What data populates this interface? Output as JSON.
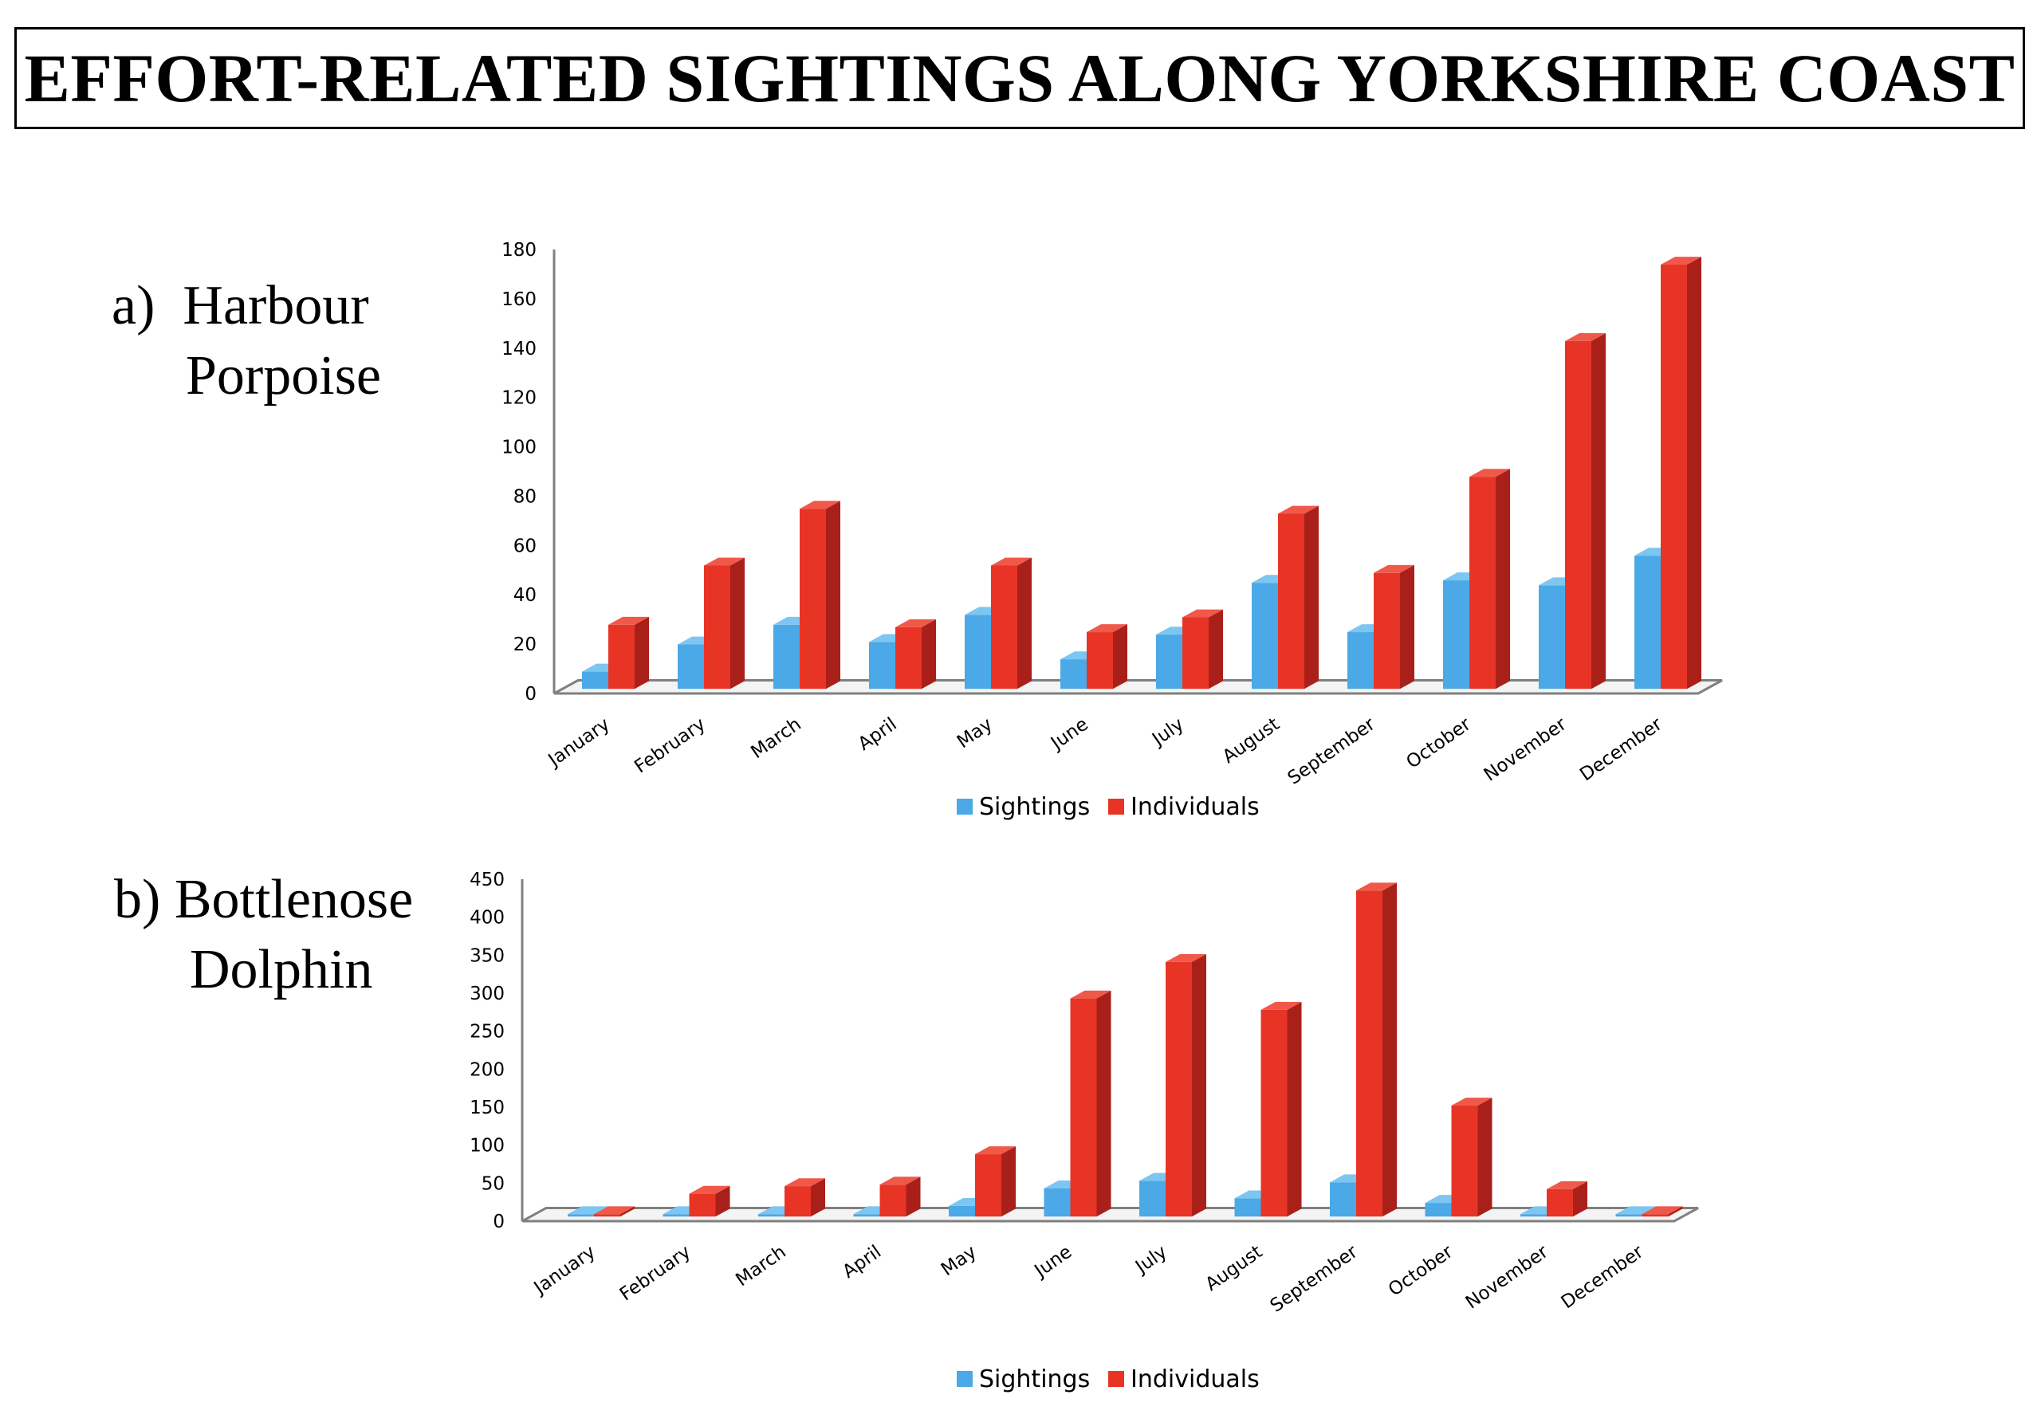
{
  "page_title": "EFFORT-RELATED SIGHTINGS ALONG YORKSHIRE COAST",
  "panels": {
    "a": {
      "prefix": "a)",
      "line1": "Harbour",
      "line2": "Porpoise"
    },
    "b": {
      "prefix": "b)",
      "line1": "Bottlenose",
      "line2": "Dolphin"
    }
  },
  "colors": {
    "sightings": "#4aa9e6",
    "sightings_side": "#2f86c2",
    "sightings_top": "#7cc6f2",
    "individuals": "#e83425",
    "individuals_side": "#a9201a",
    "individuals_top": "#f0584a",
    "axis": "#808080"
  },
  "chart_data": [
    {
      "type": "bar",
      "id": "harbour-porpoise",
      "title": "Harbour Porpoise",
      "categories": [
        "January",
        "February",
        "March",
        "April",
        "May",
        "June",
        "July",
        "August",
        "September",
        "October",
        "November",
        "December"
      ],
      "series": [
        {
          "name": "Sightings",
          "values": [
            7,
            18,
            26,
            19,
            30,
            12,
            22,
            43,
            23,
            44,
            42,
            54
          ]
        },
        {
          "name": "Individuals",
          "values": [
            26,
            50,
            73,
            25,
            50,
            23,
            29,
            71,
            47,
            86,
            141,
            172
          ]
        }
      ],
      "ylim": [
        0,
        180
      ],
      "yticks": [
        0,
        20,
        40,
        60,
        80,
        100,
        120,
        140,
        160,
        180
      ],
      "xlabel": "",
      "ylabel": "",
      "legend": "bottom-center"
    },
    {
      "type": "bar",
      "id": "bottlenose-dolphin",
      "title": "Bottlenose Dolphin",
      "categories": [
        "January",
        "February",
        "March",
        "April",
        "May",
        "June",
        "July",
        "August",
        "September",
        "October",
        "November",
        "December"
      ],
      "series": [
        {
          "name": "Sightings",
          "values": [
            0,
            3,
            2,
            2,
            14,
            37,
            47,
            24,
            45,
            18,
            1,
            0
          ]
        },
        {
          "name": "Individuals",
          "values": [
            0,
            30,
            40,
            42,
            82,
            287,
            335,
            272,
            429,
            146,
            36,
            0
          ]
        }
      ],
      "ylim": [
        0,
        450
      ],
      "yticks": [
        0,
        50,
        100,
        150,
        200,
        250,
        300,
        350,
        400,
        450
      ],
      "xlabel": "",
      "ylabel": "",
      "legend": "bottom-center"
    }
  ]
}
